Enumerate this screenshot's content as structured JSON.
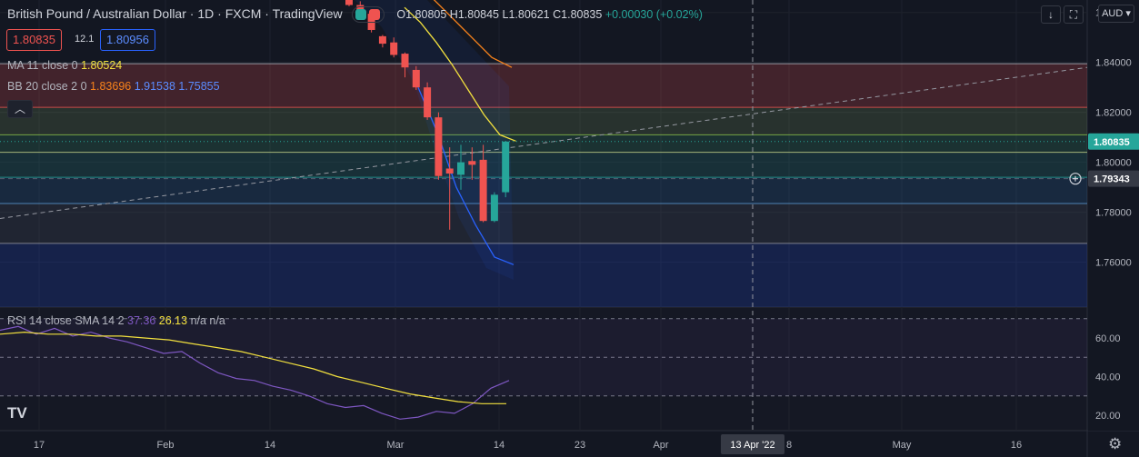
{
  "header": {
    "symbol": "British Pound / Australian Dollar",
    "interval": "1D",
    "exchange": "FXCM",
    "source": "TradingView",
    "open": "O1.80805",
    "high": "H1.80845",
    "low": "L1.80621",
    "close": "C1.80835",
    "change": "+0.00030 (+0.02%)"
  },
  "trade": {
    "sell_price": "1.80835",
    "spread": "12.1",
    "buy_price": "1.80956"
  },
  "indicators": {
    "ma_label": "MA 11 close 0",
    "ma_value": "1.80524",
    "bb_label": "BB 20 close 2 0",
    "bb_basis": "1.83696",
    "bb_upper": "1.91538",
    "bb_lower": "1.75855",
    "rsi_label": "RSI 14 close SMA 14 2",
    "rsi_value": "37.36",
    "rsi_sma": "26.13",
    "rsi_na": "n/a n/a"
  },
  "toolbar": {
    "currency": "AUD"
  },
  "colors": {
    "bg": "#131722",
    "up": "#26a69a",
    "down": "#ef5350",
    "ma": "#f2e03e",
    "bb_basis": "#f7821b",
    "bb_lower": "#2962ff",
    "rsi": "#7e57c2"
  },
  "chart_data": {
    "type": "candlestick",
    "title": "British Pound / Australian Dollar",
    "price_axis": {
      "ticks": [
        "1.86000",
        "1.84000",
        "1.82000",
        "1.80000",
        "1.78000",
        "1.76000"
      ],
      "ylim": [
        1.742,
        1.865
      ]
    },
    "current_price_label": "1.80835",
    "crosshair_price_label": "1.79343",
    "crosshair_date_label": "13 Apr '22",
    "time_axis": {
      "ticks": [
        "17",
        "Feb",
        "14",
        "Mar",
        "14",
        "23",
        "Apr",
        "8",
        "May",
        "16"
      ]
    },
    "candles": [
      {
        "o": 1.8655,
        "h": 1.8665,
        "l": 1.8625,
        "c": 1.863
      },
      {
        "o": 1.863,
        "h": 1.8645,
        "l": 1.859,
        "c": 1.8595
      },
      {
        "o": 1.8595,
        "h": 1.8605,
        "l": 1.852,
        "c": 1.853
      },
      {
        "o": 1.8505,
        "h": 1.851,
        "l": 1.846,
        "c": 1.8475
      },
      {
        "o": 1.848,
        "h": 1.85,
        "l": 1.842,
        "c": 1.843
      },
      {
        "o": 1.8435,
        "h": 1.844,
        "l": 1.834,
        "c": 1.838
      },
      {
        "o": 1.837,
        "h": 1.8385,
        "l": 1.829,
        "c": 1.83
      },
      {
        "o": 1.83,
        "h": 1.832,
        "l": 1.817,
        "c": 1.818
      },
      {
        "o": 1.818,
        "h": 1.82,
        "l": 1.793,
        "c": 1.7945
      },
      {
        "o": 1.7975,
        "h": 1.806,
        "l": 1.773,
        "c": 1.7955
      },
      {
        "o": 1.795,
        "h": 1.807,
        "l": 1.789,
        "c": 1.8
      },
      {
        "o": 1.8005,
        "h": 1.806,
        "l": 1.793,
        "c": 1.799
      },
      {
        "o": 1.801,
        "h": 1.807,
        "l": 1.776,
        "c": 1.7765
      },
      {
        "o": 1.7765,
        "h": 1.788,
        "l": 1.776,
        "c": 1.787
      },
      {
        "o": 1.788,
        "h": 1.8085,
        "l": 1.786,
        "c": 1.8083
      }
    ],
    "ma_series": [
      1.862,
      1.856,
      1.848,
      1.839,
      1.829,
      1.819,
      1.811,
      1.8085
    ],
    "bb_basis_series": [
      1.866,
      1.858,
      1.85,
      1.842,
      1.838
    ],
    "bb_lower_series": [
      1.83,
      1.812,
      1.79,
      1.775,
      1.762,
      1.759
    ],
    "zones": [
      1.8395,
      1.822,
      1.811,
      1.804,
      1.794,
      1.7835,
      1.7675
    ],
    "rsi_axis": {
      "ticks": [
        "60.00",
        "40.00",
        "20.00"
      ],
      "ylim": [
        12,
        76
      ],
      "bands": [
        70,
        50,
        30
      ]
    }
  }
}
